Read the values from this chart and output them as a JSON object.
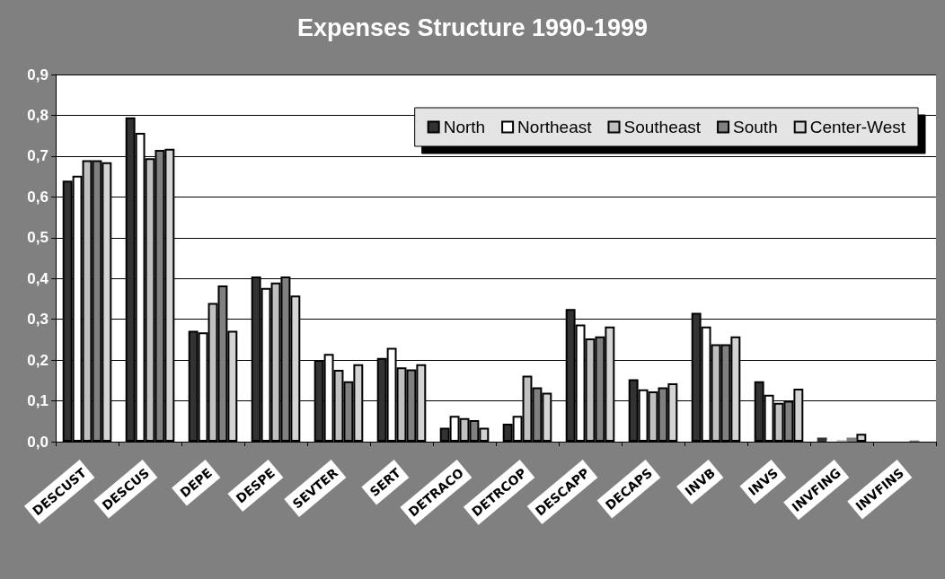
{
  "chart_data": {
    "type": "bar",
    "title": "Expenses Structure 1990-1999",
    "categories": [
      "DESCUST",
      "DESCUS",
      "DEPE",
      "DESPE",
      "SEVTER",
      "SERT",
      "DETRACO",
      "DETRCOP",
      "DESCAPP",
      "DECAPS",
      "INVB",
      "INVS",
      "INVFING",
      "INVFINS"
    ],
    "series": [
      {
        "name": "North",
        "color": "#333333",
        "values": [
          0.64,
          0.795,
          0.272,
          0.405,
          0.2,
          0.205,
          0.034,
          0.044,
          0.325,
          0.153,
          0.316,
          0.148,
          0.01,
          0
        ]
      },
      {
        "name": "Northeast",
        "color": "#ffffff",
        "values": [
          0.652,
          0.757,
          0.268,
          0.377,
          0.215,
          0.23,
          0.063,
          0.063,
          0.287,
          0.128,
          0.282,
          0.115,
          0.004,
          0.003
        ]
      },
      {
        "name": "Southeast",
        "color": "#c0c0c0",
        "values": [
          0.69,
          0.695,
          0.34,
          0.39,
          0.176,
          0.182,
          0.058,
          0.162,
          0.253,
          0.123,
          0.239,
          0.095,
          0.004,
          null
        ]
      },
      {
        "name": "South",
        "color": "#808080",
        "values": [
          0.69,
          0.715,
          0.383,
          0.405,
          0.148,
          0.177,
          0.053,
          0.133,
          0.258,
          0.133,
          0.239,
          0.1,
          0.01,
          0.003
        ]
      },
      {
        "name": "Center-West",
        "color": "#d4d4d4",
        "values": [
          0.685,
          0.718,
          0.272,
          0.358,
          0.19,
          0.19,
          0.034,
          0.12,
          0.282,
          0.143,
          0.258,
          0.13,
          0.019,
          null
        ]
      }
    ],
    "ylim": [
      0,
      0.9
    ],
    "yticks": [
      {
        "value": 0,
        "label": "0,0"
      },
      {
        "value": 0.1,
        "label": "0,1"
      },
      {
        "value": 0.2,
        "label": "0,2"
      },
      {
        "value": 0.3,
        "label": "0,3"
      },
      {
        "value": 0.4,
        "label": "0,4"
      },
      {
        "value": 0.5,
        "label": "0,5"
      },
      {
        "value": 0.6,
        "label": "0,6"
      },
      {
        "value": 0.7,
        "label": "0,7"
      },
      {
        "value": 0.8,
        "label": "0,8"
      },
      {
        "value": 0.9,
        "label": "0,9"
      }
    ],
    "grid": "y",
    "legend": "top right"
  }
}
